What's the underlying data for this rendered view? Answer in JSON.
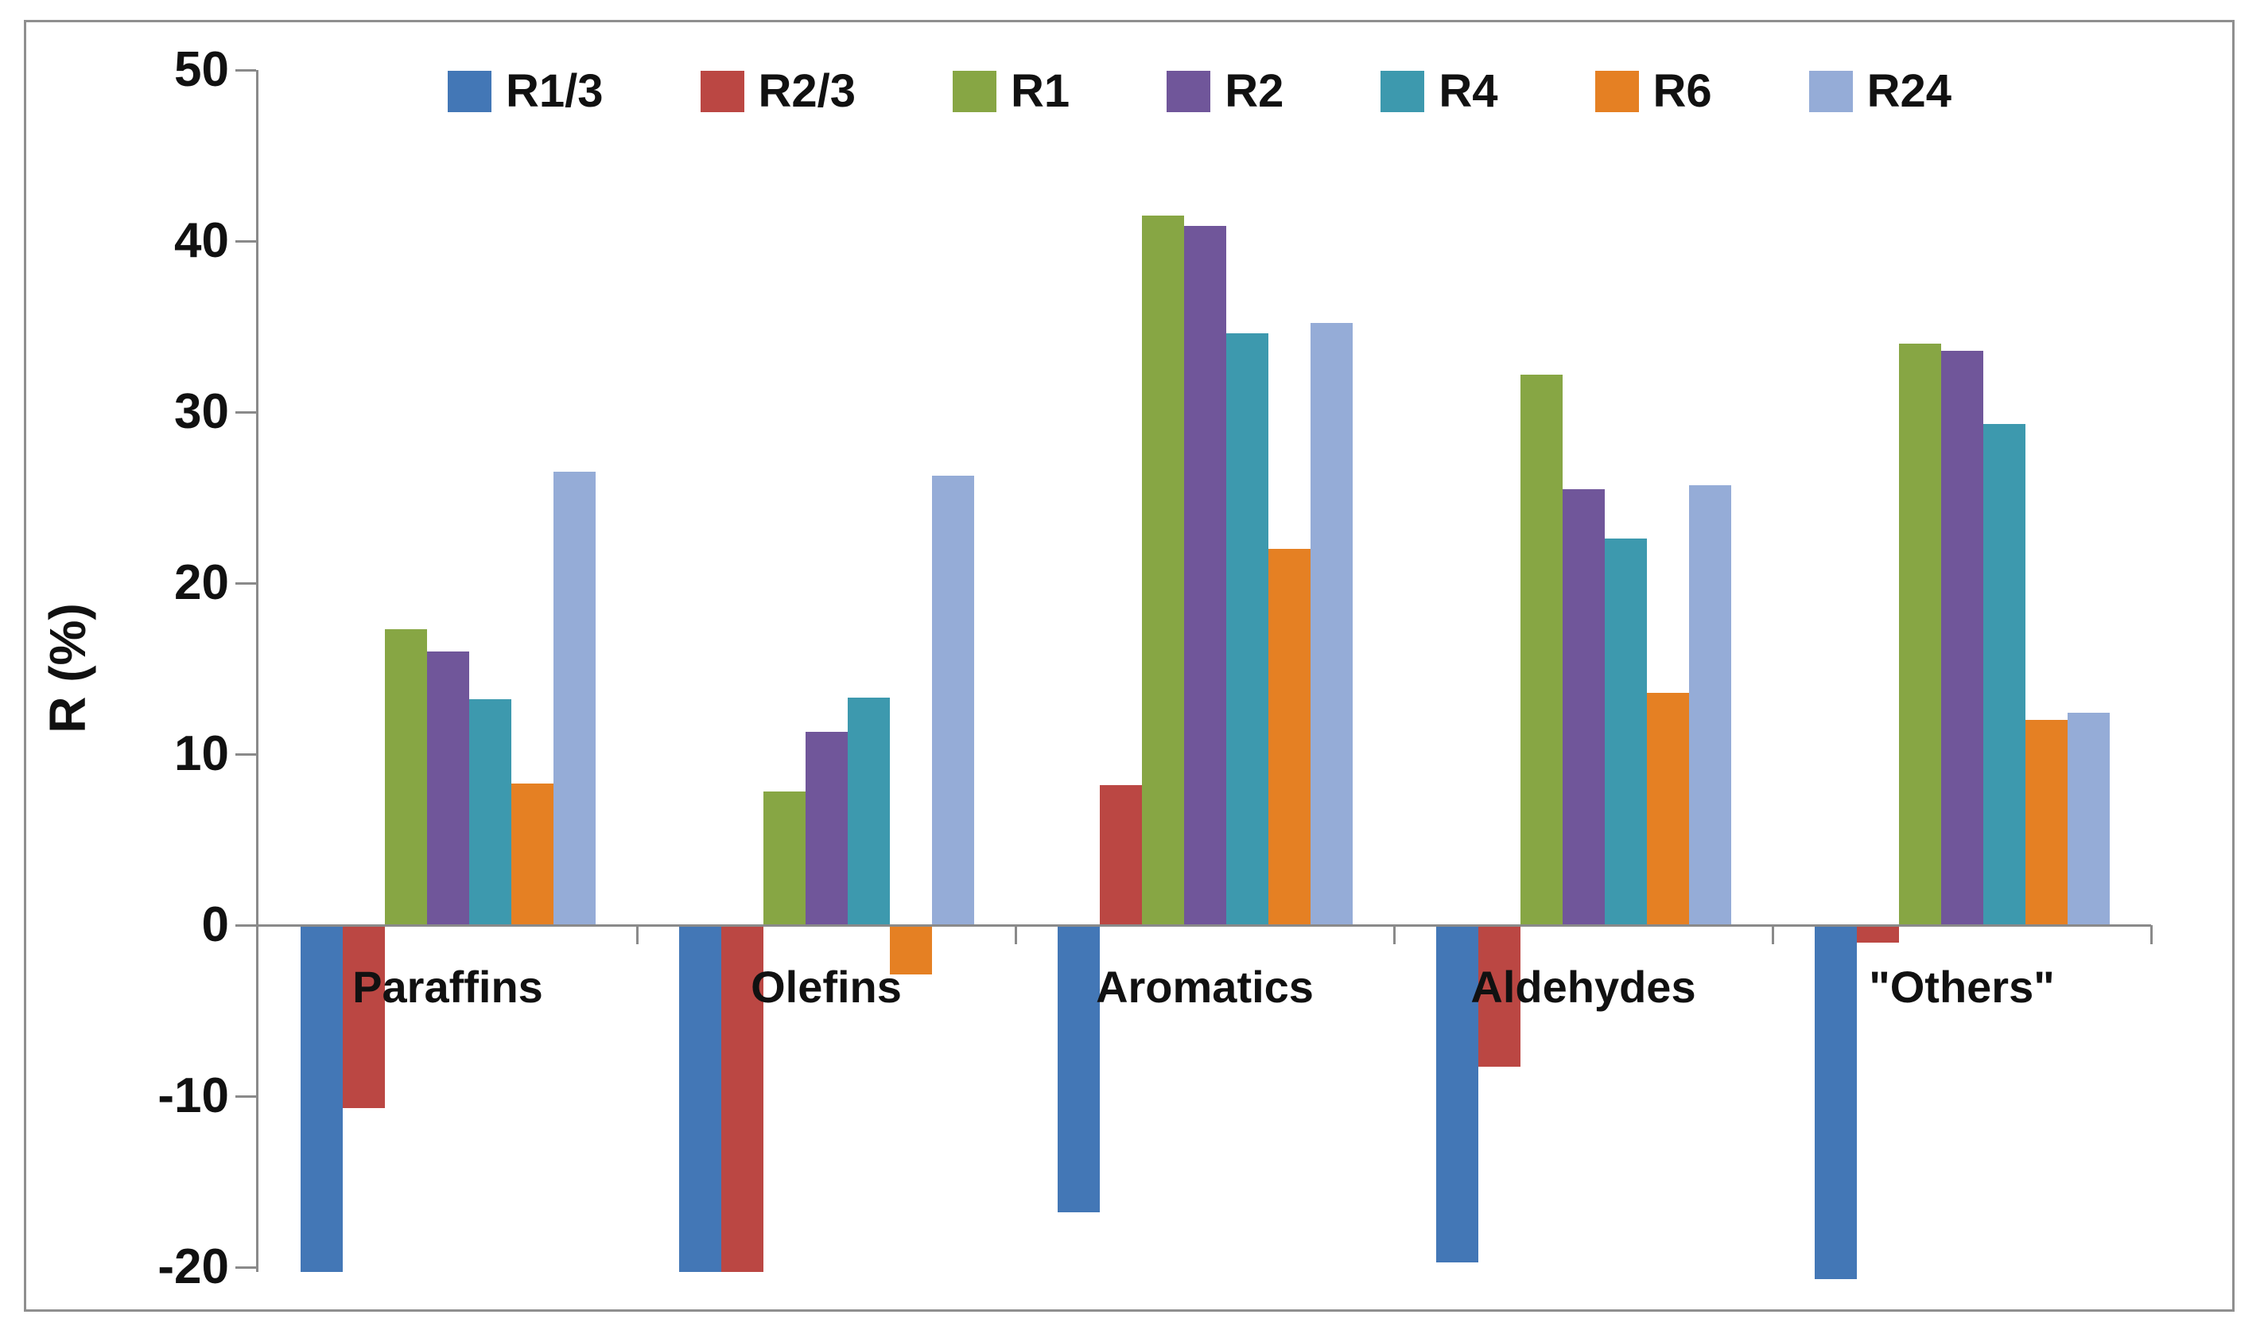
{
  "chart_data": {
    "type": "bar",
    "title": "",
    "xlabel": "",
    "ylabel": "R (%)",
    "ylim": [
      -21,
      50
    ],
    "yticks": [
      50,
      40,
      30,
      20,
      10,
      0,
      -10,
      -20
    ],
    "grid": false,
    "legend_position": "top",
    "categories": [
      "Paraffins",
      "Olefins",
      "Aromatics",
      "Aldehydes",
      "\"Others\""
    ],
    "series": [
      {
        "name": "R1/3",
        "color": "#4377B6",
        "values": [
          -20.3,
          -20.3,
          -16.8,
          -19.7,
          -20.7
        ]
      },
      {
        "name": "R2/3",
        "color": "#BB4743",
        "values": [
          -10.7,
          -20.3,
          8.2,
          -8.3,
          -1.0
        ]
      },
      {
        "name": "R1",
        "color": "#87A644",
        "values": [
          17.3,
          7.8,
          41.5,
          32.2,
          34.0
        ]
      },
      {
        "name": "R2",
        "color": "#70569A",
        "values": [
          16.0,
          11.3,
          40.9,
          25.5,
          33.6
        ]
      },
      {
        "name": "R4",
        "color": "#3D99AE",
        "values": [
          13.2,
          13.3,
          34.6,
          22.6,
          29.3
        ]
      },
      {
        "name": "R6",
        "color": "#E58023",
        "values": [
          8.3,
          -2.9,
          22.0,
          13.6,
          12.0
        ]
      },
      {
        "name": "R24",
        "color": "#95ACD7",
        "values": [
          26.5,
          26.3,
          35.2,
          25.7,
          12.4
        ]
      }
    ],
    "colors": {
      "axis": "#8A8A8A",
      "border": "#8F8F8F",
      "text": "#111111",
      "background": "#FFFFFF"
    }
  }
}
